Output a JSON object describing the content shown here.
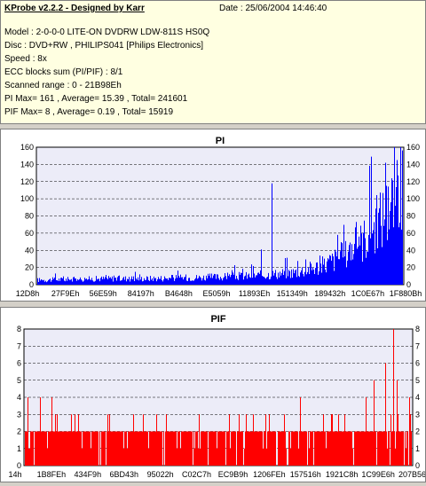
{
  "info": {
    "title": "KProbe v2.2.2 - Designed by Karr",
    "date": "Date : 25/06/2004 14:46:40",
    "lines": [
      "Model : 2-0-0-0 LITE-ON DVDRW LDW-811S   HS0Q",
      "Disc : DVD+RW , PHILIPS041 [Philips Electronics]",
      "Speed : 8x",
      "ECC blocks sum (PI/PIF) : 8/1",
      "Scanned range : 0 - 21B98Eh",
      "PI Max= 161 , Average= 15.39 , Total= 241601",
      "PIF Max= 8 , Average= 0.19 , Total= 15919"
    ]
  },
  "colors": {
    "pi": "#0000ff",
    "pif": "#ff0000",
    "plot_bg": "#ececf8",
    "grid": "#000000"
  },
  "chart_data": [
    {
      "type": "area",
      "title": "PI",
      "ylim": [
        0,
        160
      ],
      "yticks": [
        0,
        20,
        40,
        60,
        80,
        100,
        120,
        140,
        160
      ],
      "xticklabels": [
        "12D8h",
        "27F9Eh",
        "56E59h",
        "84197h",
        "B4648h",
        "E5059h",
        "11893Eh",
        "151349h",
        "189432h",
        "1C0E67h",
        "1F880Bh"
      ],
      "x_range": [
        0,
        100
      ],
      "profile": [
        [
          0,
          6
        ],
        [
          10,
          7
        ],
        [
          20,
          8
        ],
        [
          30,
          8
        ],
        [
          40,
          9
        ],
        [
          50,
          10
        ],
        [
          60,
          12
        ],
        [
          70,
          16
        ],
        [
          78,
          25
        ],
        [
          84,
          40
        ],
        [
          88,
          55
        ],
        [
          92,
          75
        ],
        [
          95,
          95
        ],
        [
          98,
          115
        ],
        [
          100,
          120
        ]
      ],
      "spikes": [
        [
          5,
          13
        ],
        [
          28,
          12
        ],
        [
          52,
          14
        ],
        [
          61,
          41
        ],
        [
          64,
          118
        ],
        [
          77,
          34
        ],
        [
          82,
          58
        ],
        [
          87,
          73
        ],
        [
          91,
          149
        ],
        [
          95,
          142
        ],
        [
          98,
          145
        ],
        [
          99,
          160
        ]
      ],
      "series": [
        {
          "name": "PI"
        }
      ]
    },
    {
      "type": "bar",
      "title": "PIF",
      "ylim": [
        0,
        8
      ],
      "yticks": [
        0,
        1,
        2,
        3,
        4,
        5,
        6,
        7,
        8
      ],
      "xticklabels": [
        "14h",
        "1B8FEh",
        "434F9h",
        "6BD43h",
        "95022h",
        "C02C7h",
        "EC9B9h",
        "1206FEh",
        "157516h",
        "1921C8h",
        "1C99E6h",
        "207B56h"
      ],
      "x_range": [
        0,
        100
      ],
      "base_level": 2,
      "spikes": [
        [
          1,
          4
        ],
        [
          4,
          4
        ],
        [
          7,
          4
        ],
        [
          8,
          3
        ],
        [
          12,
          3
        ],
        [
          22,
          3
        ],
        [
          34,
          3
        ],
        [
          45,
          3
        ],
        [
          59,
          3
        ],
        [
          63,
          3
        ],
        [
          67,
          3
        ],
        [
          71,
          4
        ],
        [
          77,
          3
        ],
        [
          88,
          4
        ],
        [
          90,
          5
        ],
        [
          93,
          6
        ],
        [
          95,
          8
        ],
        [
          96,
          5
        ],
        [
          99,
          4
        ]
      ],
      "series": [
        {
          "name": "PIF"
        }
      ]
    }
  ]
}
